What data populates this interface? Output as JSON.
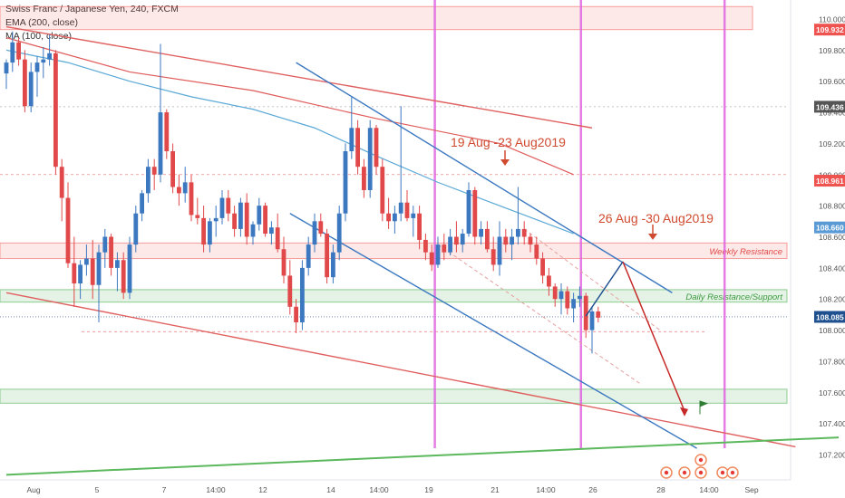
{
  "legend": {
    "title": "Swiss Franc / Japanese Yen, 240, FXCM",
    "ema": "EMA (200, close)",
    "ma": "MA (100, close)"
  },
  "chart_data": {
    "type": "candlestick",
    "symbol": "CHFJPY",
    "timeframe": "240",
    "ylim": [
      107.15,
      110.12
    ],
    "y_ticks": [
      107.2,
      107.4,
      107.6,
      107.8,
      108.0,
      108.2,
      108.4,
      108.6,
      108.8,
      109.0,
      109.2,
      109.4,
      109.6,
      109.8,
      110.0
    ],
    "y_tick_labels": [
      "107.200",
      "107.400",
      "107.600",
      "107.800",
      "108.000",
      "108.200",
      "108.400",
      "108.600",
      "108.800",
      "109.000",
      "109.200",
      "109.400",
      "109.600",
      "109.800",
      "110.000"
    ],
    "x_tick_labels": [
      "Aug",
      "5",
      "7",
      "14:00",
      "12",
      "14",
      "14:00",
      "19",
      "21",
      "14:00",
      "26",
      "28",
      "14:00",
      "Sep"
    ],
    "price_tags": [
      {
        "value": 109.932,
        "label": "109.932",
        "color": "#ef5350"
      },
      {
        "value": 109.436,
        "label": "109.436",
        "color": "#555555"
      },
      {
        "value": 108.961,
        "label": "108.961",
        "color": "#ef5350"
      },
      {
        "value": 108.66,
        "label": "108.660",
        "color": "#5b9bd5"
      },
      {
        "value": 108.085,
        "label": "108.085",
        "color": "#1e4f8f"
      }
    ],
    "zones": [
      {
        "name": "top-resistance",
        "from": 109.932,
        "to": 110.08,
        "color": "#ef5350"
      },
      {
        "name": "weekly-resistance",
        "from": 108.46,
        "to": 108.56,
        "color": "#ef5350",
        "label": "Weekly Resistance"
      },
      {
        "name": "daily-resistance-support",
        "from": 108.18,
        "to": 108.26,
        "color": "#4caf50",
        "label": "Daily Resistance/Support"
      },
      {
        "name": "lower-support",
        "from": 107.53,
        "to": 107.62,
        "color": "#4caf50"
      }
    ],
    "annotations": [
      {
        "text": "19 Aug -23 Aug2019",
        "color": "#d04a2f"
      },
      {
        "text": "26 Aug -30 Aug2019",
        "color": "#d04a2f"
      }
    ],
    "candles": [
      [
        109.65,
        109.74,
        109.55,
        109.72
      ],
      [
        109.72,
        109.92,
        109.66,
        109.85
      ],
      [
        109.85,
        109.88,
        109.7,
        109.74
      ],
      [
        109.74,
        109.8,
        109.4,
        109.44
      ],
      [
        109.44,
        109.72,
        109.4,
        109.66
      ],
      [
        109.66,
        109.76,
        109.5,
        109.72
      ],
      [
        109.72,
        109.82,
        109.62,
        109.74
      ],
      [
        109.74,
        109.9,
        109.7,
        109.78
      ],
      [
        109.78,
        109.8,
        109.0,
        109.05
      ],
      [
        109.05,
        109.1,
        108.7,
        108.85
      ],
      [
        108.85,
        108.95,
        108.4,
        108.43
      ],
      [
        108.43,
        108.6,
        108.15,
        108.3
      ],
      [
        108.3,
        108.45,
        108.2,
        108.42
      ],
      [
        108.42,
        108.55,
        108.35,
        108.46
      ],
      [
        108.46,
        108.58,
        108.2,
        108.29
      ],
      [
        108.29,
        108.55,
        108.05,
        108.5
      ],
      [
        108.5,
        108.65,
        108.4,
        108.6
      ],
      [
        108.6,
        108.62,
        108.35,
        108.4
      ],
      [
        108.4,
        108.5,
        108.25,
        108.45
      ],
      [
        108.45,
        108.5,
        108.2,
        108.24
      ],
      [
        108.24,
        108.6,
        108.2,
        108.55
      ],
      [
        108.55,
        108.8,
        108.5,
        108.75
      ],
      [
        108.75,
        108.9,
        108.7,
        108.88
      ],
      [
        108.88,
        109.1,
        108.82,
        109.05
      ],
      [
        109.05,
        109.1,
        108.9,
        109.0
      ],
      [
        109.0,
        109.84,
        108.95,
        109.4
      ],
      [
        109.4,
        109.42,
        109.1,
        109.15
      ],
      [
        109.15,
        109.2,
        108.88,
        108.92
      ],
      [
        108.92,
        109.0,
        108.8,
        108.88
      ],
      [
        108.88,
        109.05,
        108.82,
        108.95
      ],
      [
        108.95,
        109.0,
        108.7,
        108.74
      ],
      [
        108.74,
        108.85,
        108.68,
        108.72
      ],
      [
        108.72,
        108.8,
        108.5,
        108.55
      ],
      [
        108.55,
        108.72,
        108.5,
        108.7
      ],
      [
        108.7,
        108.8,
        108.6,
        108.72
      ],
      [
        108.72,
        108.9,
        108.68,
        108.85
      ],
      [
        108.85,
        108.9,
        108.7,
        108.75
      ],
      [
        108.75,
        108.8,
        108.6,
        108.65
      ],
      [
        108.65,
        108.85,
        108.6,
        108.82
      ],
      [
        108.82,
        108.88,
        108.55,
        108.6
      ],
      [
        108.6,
        108.7,
        108.55,
        108.68
      ],
      [
        108.68,
        108.85,
        108.64,
        108.8
      ],
      [
        108.8,
        108.82,
        108.6,
        108.62
      ],
      [
        108.62,
        108.7,
        108.55,
        108.66
      ],
      [
        108.66,
        108.75,
        108.5,
        108.52
      ],
      [
        108.52,
        108.6,
        108.3,
        108.35
      ],
      [
        108.35,
        108.45,
        108.1,
        108.15
      ],
      [
        108.15,
        108.2,
        107.98,
        108.05
      ],
      [
        108.05,
        108.45,
        108.0,
        108.4
      ],
      [
        108.4,
        108.6,
        108.35,
        108.55
      ],
      [
        108.55,
        108.75,
        108.5,
        108.7
      ],
      [
        108.7,
        108.75,
        108.6,
        108.62
      ],
      [
        108.62,
        108.65,
        108.3,
        108.34
      ],
      [
        108.34,
        108.55,
        108.3,
        108.5
      ],
      [
        108.5,
        108.8,
        108.45,
        108.75
      ],
      [
        108.75,
        109.2,
        108.7,
        109.15
      ],
      [
        109.15,
        109.5,
        109.1,
        109.3
      ],
      [
        109.3,
        109.35,
        109.0,
        109.05
      ],
      [
        109.05,
        109.1,
        108.85,
        108.9
      ],
      [
        108.9,
        109.35,
        108.85,
        109.3
      ],
      [
        109.3,
        109.32,
        109.0,
        109.05
      ],
      [
        109.05,
        109.1,
        108.7,
        108.75
      ],
      [
        108.75,
        108.85,
        108.65,
        108.7
      ],
      [
        108.7,
        108.8,
        108.62,
        108.75
      ],
      [
        108.75,
        109.44,
        108.7,
        108.82
      ],
      [
        108.82,
        108.9,
        108.7,
        108.72
      ],
      [
        108.72,
        108.8,
        108.6,
        108.75
      ],
      [
        108.75,
        108.8,
        108.52,
        108.58
      ],
      [
        108.58,
        108.62,
        108.45,
        108.5
      ],
      [
        108.5,
        108.55,
        108.38,
        108.42
      ],
      [
        108.42,
        108.6,
        108.4,
        108.55
      ],
      [
        108.55,
        108.62,
        108.45,
        108.5
      ],
      [
        108.5,
        108.65,
        108.48,
        108.6
      ],
      [
        108.6,
        108.7,
        108.5,
        108.55
      ],
      [
        108.55,
        108.65,
        108.5,
        108.62
      ],
      [
        108.62,
        108.95,
        108.6,
        108.9
      ],
      [
        108.9,
        108.92,
        108.55,
        108.6
      ],
      [
        108.6,
        108.7,
        108.55,
        108.65
      ],
      [
        108.65,
        108.7,
        108.5,
        108.52
      ],
      [
        108.52,
        108.6,
        108.38,
        108.42
      ],
      [
        108.42,
        108.7,
        108.35,
        108.6
      ],
      [
        108.6,
        108.65,
        108.5,
        108.55
      ],
      [
        108.55,
        108.65,
        108.45,
        108.6
      ],
      [
        108.6,
        108.92,
        108.55,
        108.65
      ],
      [
        108.65,
        108.7,
        108.55,
        108.6
      ],
      [
        108.6,
        108.62,
        108.5,
        108.55
      ],
      [
        108.55,
        108.6,
        108.42,
        108.46
      ],
      [
        108.46,
        108.5,
        108.3,
        108.35
      ],
      [
        108.35,
        108.4,
        108.22,
        108.28
      ],
      [
        108.28,
        108.3,
        108.15,
        108.2
      ],
      [
        108.2,
        108.3,
        108.1,
        108.25
      ],
      [
        108.25,
        108.28,
        108.1,
        108.14
      ],
      [
        108.14,
        108.24,
        108.05,
        108.2
      ],
      [
        108.2,
        108.28,
        108.15,
        108.22
      ],
      [
        108.22,
        108.24,
        107.95,
        108.0
      ],
      [
        108.0,
        108.15,
        107.85,
        108.12
      ],
      [
        108.12,
        108.15,
        108.05,
        108.08
      ]
    ],
    "ema200": [
      [
        0,
        109.88
      ],
      [
        20,
        109.66
      ],
      [
        40,
        109.54
      ],
      [
        60,
        109.36
      ],
      [
        80,
        109.2
      ],
      [
        92,
        109.0
      ]
    ],
    "ma100": [
      [
        0,
        109.8
      ],
      [
        10,
        109.72
      ],
      [
        20,
        109.6
      ],
      [
        30,
        109.5
      ],
      [
        40,
        109.42
      ],
      [
        50,
        109.3
      ],
      [
        60,
        109.12
      ],
      [
        70,
        108.95
      ],
      [
        80,
        108.8
      ],
      [
        92,
        108.62
      ]
    ],
    "trend_lines": [
      {
        "name": "red-channel-top",
        "from": [
          0,
          109.95
        ],
        "to": [
          95,
          109.3
        ],
        "color": "#e06060"
      },
      {
        "name": "red-channel-bottom",
        "from": [
          0,
          108.24
        ],
        "to": [
          128,
          107.25
        ],
        "color": "#e06060"
      },
      {
        "name": "blue-channel-top",
        "from": [
          47,
          109.72
        ],
        "to": [
          108,
          108.24
        ],
        "color": "#3b78c0"
      },
      {
        "name": "blue-channel-bottom",
        "from": [
          46,
          108.75
        ],
        "to": [
          112,
          107.24
        ],
        "color": "#3b78c0"
      },
      {
        "name": "green-support",
        "from": [
          0,
          107.07
        ],
        "to": [
          135,
          107.31
        ],
        "color": "#5cb85c"
      }
    ],
    "projection": {
      "points": [
        [
          94,
          108.09
        ],
        [
          100,
          108.44
        ],
        [
          110,
          107.48
        ]
      ],
      "color_up": "#1e4f8f",
      "color_down": "#c62828"
    },
    "vertical_markers": [
      69.5,
      93.2,
      116.5
    ],
    "dotted_levels": [
      109.0,
      107.99
    ]
  }
}
